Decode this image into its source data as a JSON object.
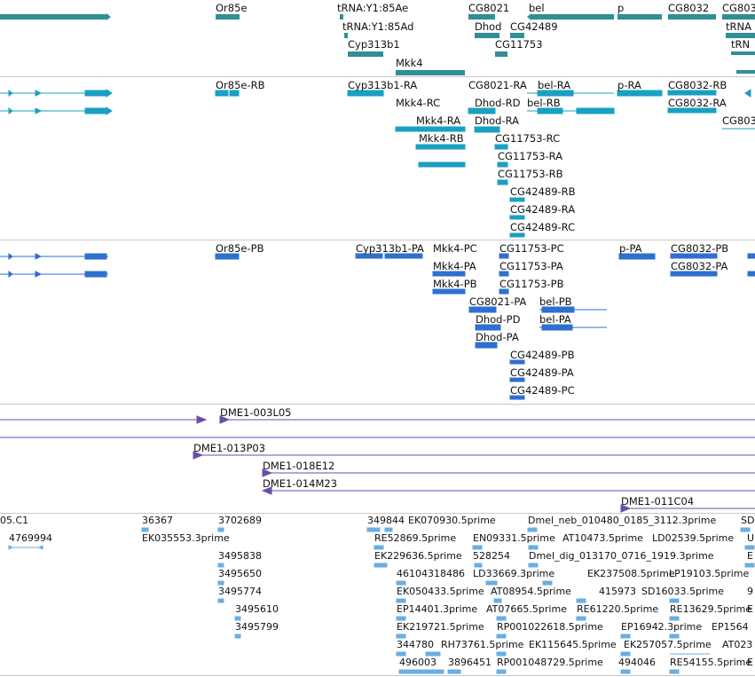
{
  "colors": {
    "gene_span": "#2f8f94",
    "transcript": "#1aa0c0",
    "protein_coding": "#2f6fcf",
    "clone": "#6a4ea8",
    "est": "#6aaee0",
    "divider": "#c8c8c8"
  },
  "tracks": {
    "genes": {
      "features": [
        "Or85e",
        "tRNA:Y1:85Ae",
        "tRNA:Y1:85Ad",
        "Cyp313b1",
        "Mkk4",
        "CG8021",
        "Dhod",
        "bel",
        "CG42489",
        "CG11753",
        "p",
        "CG8032",
        "CG803",
        "tRNA",
        "tRN"
      ]
    },
    "transcripts": {
      "features": [
        "Or85e-RB",
        "Cyp313b1-RA",
        "CG8021-RA",
        "bel-RA",
        "p-RA",
        "CG8032-RB",
        "Mkk4-RC",
        "Dhod-RD",
        "bel-RB",
        "CG8032-RA",
        "Mkk4-RA",
        "Dhod-RA",
        "CG803",
        "Mkk4-RB",
        "CG11753-RC",
        "CG11753-RA",
        "CG11753-RB",
        "CG42489-RB",
        "CG42489-RA",
        "CG42489-RC"
      ]
    },
    "proteins": {
      "features": [
        "Or85e-PB",
        "Cyp313b1-PA",
        "Mkk4-PC",
        "CG11753-PC",
        "p-PA",
        "CG8032-PB",
        "Mkk4-PA",
        "CG11753-PA",
        "CG8032-PA",
        "Mkk4-PB",
        "CG11753-PB",
        "CG8021-PA",
        "bel-PB",
        "Dhod-PD",
        "bel-PA",
        "Dhod-PA",
        "CG42489-PB",
        "CG42489-PA",
        "CG42489-PC"
      ]
    },
    "clones": {
      "features": [
        "DME1-003L05",
        "DME1-013P03",
        "DME1-018E12",
        "DME1-014M23",
        "DME1-011C04"
      ]
    },
    "ests": {
      "features": [
        "05.C1",
        "4769994",
        "36367",
        "EK035553.3prime",
        "3702689",
        "3495838",
        "3495650",
        "3495774",
        "3495610",
        "3495799",
        "349844",
        "EK070930.5prime",
        "RE52869.5prime",
        "EN09331.5prime",
        "EK229636.5prime",
        "528254",
        "46104318486",
        "LD33669.3prime",
        "EK050433.5prime",
        "AT08954.5prime",
        "EP14401.3prime",
        "AT07665.5prime",
        "EK219721.5prime",
        "RP001022618.5prime",
        "344780",
        "RH73761.5prime",
        "EK115645.5prime",
        "496003",
        "3896451",
        "RP001048729.5prime",
        "494046",
        "Dmel_neb_010480_0185_3112.3prime",
        "AT10473.5prime",
        "LD02539.5prime",
        "Dmel_dig_013170_0716_1919.3prime",
        "EK237508.5prime",
        "LP19103.5prime",
        "415973",
        "SD16033.5prime",
        "RE61220.5prime",
        "RE13629.5prime",
        "EP16942.3prime",
        "EK257057.5prime",
        "EP1564",
        "AT023",
        "RE54155.5prime",
        "SD",
        "U",
        "E",
        "9",
        "E",
        "E"
      ]
    }
  }
}
